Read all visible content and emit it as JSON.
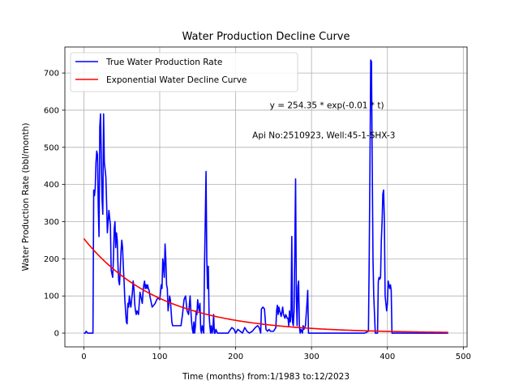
{
  "chart_data": {
    "type": "line",
    "title": "Water Production Decline Curve",
    "xlabel": "Time (months) from:1/1983 to:12/2023",
    "ylabel": "Water Production Rate (bbl/month)",
    "xlim": [
      -25,
      505
    ],
    "ylim": [
      -37,
      770
    ],
    "xticks": [
      0,
      100,
      200,
      300,
      400,
      500
    ],
    "yticks": [
      0,
      100,
      200,
      300,
      400,
      500,
      600,
      700
    ],
    "grid": true,
    "legend_position": "top-left",
    "annotations": [
      {
        "text": "y = 254.35 * exp(-0.01 * t)",
        "x": 245,
        "y": 605
      },
      {
        "text": "Api No:2510923, Well:45-1-SHX-3",
        "x": 222,
        "y": 525
      }
    ],
    "series": [
      {
        "name": "True Water Production Rate",
        "color": "#0000ff",
        "points": [
          [
            0,
            0
          ],
          [
            1,
            0
          ],
          [
            2,
            0
          ],
          [
            3,
            5
          ],
          [
            4,
            3
          ],
          [
            5,
            0
          ],
          [
            6,
            0
          ],
          [
            10,
            0
          ],
          [
            12,
            0
          ],
          [
            13,
            385
          ],
          [
            14,
            370
          ],
          [
            15,
            390
          ],
          [
            16,
            460
          ],
          [
            17,
            490
          ],
          [
            18,
            480
          ],
          [
            19,
            340
          ],
          [
            20,
            260
          ],
          [
            21,
            555
          ],
          [
            22,
            590
          ],
          [
            23,
            470
          ],
          [
            24,
            360
          ],
          [
            25,
            320
          ],
          [
            26,
            590
          ],
          [
            27,
            460
          ],
          [
            28,
            440
          ],
          [
            29,
            420
          ],
          [
            30,
            350
          ],
          [
            31,
            270
          ],
          [
            32,
            300
          ],
          [
            33,
            330
          ],
          [
            34,
            310
          ],
          [
            35,
            290
          ],
          [
            36,
            170
          ],
          [
            37,
            160
          ],
          [
            38,
            150
          ],
          [
            39,
            200
          ],
          [
            40,
            280
          ],
          [
            41,
            300
          ],
          [
            42,
            230
          ],
          [
            43,
            270
          ],
          [
            44,
            250
          ],
          [
            45,
            180
          ],
          [
            46,
            140
          ],
          [
            47,
            130
          ],
          [
            48,
            170
          ],
          [
            49,
            220
          ],
          [
            50,
            250
          ],
          [
            51,
            230
          ],
          [
            52,
            180
          ],
          [
            53,
            140
          ],
          [
            54,
            90
          ],
          [
            55,
            60
          ],
          [
            56,
            30
          ],
          [
            57,
            25
          ],
          [
            58,
            80
          ],
          [
            59,
            70
          ],
          [
            60,
            100
          ],
          [
            61,
            80
          ],
          [
            62,
            70
          ],
          [
            63,
            90
          ],
          [
            64,
            110
          ],
          [
            65,
            140
          ],
          [
            66,
            120
          ],
          [
            67,
            80
          ],
          [
            68,
            60
          ],
          [
            69,
            50
          ],
          [
            70,
            60
          ],
          [
            71,
            55
          ],
          [
            72,
            50
          ],
          [
            73,
            80
          ],
          [
            74,
            110
          ],
          [
            75,
            100
          ],
          [
            76,
            90
          ],
          [
            77,
            80
          ],
          [
            78,
            110
          ],
          [
            79,
            130
          ],
          [
            80,
            140
          ],
          [
            81,
            120
          ],
          [
            82,
            130
          ],
          [
            83,
            120
          ],
          [
            84,
            130
          ],
          [
            85,
            120
          ],
          [
            86,
            115
          ],
          [
            87,
            100
          ],
          [
            88,
            90
          ],
          [
            89,
            80
          ],
          [
            90,
            70
          ],
          [
            92,
            75
          ],
          [
            94,
            80
          ],
          [
            96,
            90
          ],
          [
            98,
            95
          ],
          [
            100,
            90
          ],
          [
            102,
            130
          ],
          [
            103,
            120
          ],
          [
            104,
            200
          ],
          [
            105,
            180
          ],
          [
            106,
            150
          ],
          [
            107,
            240
          ],
          [
            108,
            200
          ],
          [
            109,
            130
          ],
          [
            110,
            120
          ],
          [
            111,
            60
          ],
          [
            112,
            80
          ],
          [
            113,
            100
          ],
          [
            114,
            90
          ],
          [
            115,
            60
          ],
          [
            116,
            30
          ],
          [
            117,
            20
          ],
          [
            118,
            20
          ],
          [
            120,
            20
          ],
          [
            125,
            20
          ],
          [
            128,
            20
          ],
          [
            130,
            50
          ],
          [
            132,
            90
          ],
          [
            134,
            100
          ],
          [
            136,
            60
          ],
          [
            138,
            50
          ],
          [
            140,
            100
          ],
          [
            141,
            60
          ],
          [
            142,
            30
          ],
          [
            143,
            10
          ],
          [
            144,
            0
          ],
          [
            145,
            30
          ],
          [
            146,
            0
          ],
          [
            147,
            20
          ],
          [
            148,
            60
          ],
          [
            149,
            50
          ],
          [
            150,
            90
          ],
          [
            151,
            70
          ],
          [
            152,
            60
          ],
          [
            153,
            80
          ],
          [
            154,
            10
          ],
          [
            155,
            0
          ],
          [
            156,
            20
          ],
          [
            157,
            10
          ],
          [
            158,
            0
          ],
          [
            159,
            180
          ],
          [
            160,
            300
          ],
          [
            161,
            435
          ],
          [
            162,
            200
          ],
          [
            163,
            120
          ],
          [
            164,
            180
          ],
          [
            165,
            50
          ],
          [
            166,
            20
          ],
          [
            167,
            0
          ],
          [
            168,
            20
          ],
          [
            169,
            0
          ],
          [
            170,
            10
          ],
          [
            171,
            50
          ],
          [
            172,
            0
          ],
          [
            173,
            0
          ],
          [
            174,
            10
          ],
          [
            176,
            0
          ],
          [
            180,
            0
          ],
          [
            185,
            0
          ],
          [
            190,
            0
          ],
          [
            195,
            15
          ],
          [
            198,
            10
          ],
          [
            200,
            0
          ],
          [
            203,
            10
          ],
          [
            206,
            5
          ],
          [
            209,
            0
          ],
          [
            212,
            15
          ],
          [
            215,
            5
          ],
          [
            218,
            0
          ],
          [
            222,
            5
          ],
          [
            226,
            15
          ],
          [
            229,
            20
          ],
          [
            231,
            15
          ],
          [
            233,
            0
          ],
          [
            234,
            65
          ],
          [
            236,
            70
          ],
          [
            238,
            65
          ],
          [
            240,
            10
          ],
          [
            242,
            5
          ],
          [
            244,
            10
          ],
          [
            246,
            5
          ],
          [
            250,
            5
          ],
          [
            253,
            15
          ],
          [
            254,
            60
          ],
          [
            255,
            75
          ],
          [
            256,
            50
          ],
          [
            257,
            70
          ],
          [
            258,
            60
          ],
          [
            260,
            45
          ],
          [
            262,
            70
          ],
          [
            263,
            50
          ],
          [
            265,
            40
          ],
          [
            266,
            50
          ],
          [
            268,
            40
          ],
          [
            269,
            40
          ],
          [
            270,
            20
          ],
          [
            271,
            60
          ],
          [
            272,
            30
          ],
          [
            273,
            45
          ],
          [
            274,
            260
          ],
          [
            275,
            30
          ],
          [
            276,
            20
          ],
          [
            277,
            60
          ],
          [
            278,
            230
          ],
          [
            279,
            415
          ],
          [
            280,
            100
          ],
          [
            281,
            20
          ],
          [
            282,
            125
          ],
          [
            283,
            140
          ],
          [
            284,
            20
          ],
          [
            285,
            0
          ],
          [
            286,
            10
          ],
          [
            288,
            0
          ],
          [
            289,
            20
          ],
          [
            290,
            10
          ],
          [
            292,
            20
          ],
          [
            294,
            80
          ],
          [
            295,
            115
          ],
          [
            296,
            0
          ],
          [
            300,
            0
          ],
          [
            310,
            0
          ],
          [
            320,
            0
          ],
          [
            330,
            0
          ],
          [
            340,
            0
          ],
          [
            350,
            0
          ],
          [
            360,
            0
          ],
          [
            370,
            0
          ],
          [
            375,
            5
          ],
          [
            376,
            200
          ],
          [
            377,
            450
          ],
          [
            378,
            735
          ],
          [
            379,
            730
          ],
          [
            380,
            450
          ],
          [
            381,
            200
          ],
          [
            382,
            100
          ],
          [
            383,
            50
          ],
          [
            384,
            0
          ],
          [
            385,
            0
          ],
          [
            387,
            0
          ],
          [
            388,
            140
          ],
          [
            389,
            150
          ],
          [
            390,
            145
          ],
          [
            391,
            150
          ],
          [
            392,
            250
          ],
          [
            393,
            300
          ],
          [
            394,
            375
          ],
          [
            395,
            385
          ],
          [
            396,
            300
          ],
          [
            397,
            100
          ],
          [
            398,
            80
          ],
          [
            399,
            60
          ],
          [
            400,
            80
          ],
          [
            401,
            140
          ],
          [
            402,
            130
          ],
          [
            403,
            120
          ],
          [
            404,
            130
          ],
          [
            405,
            115
          ],
          [
            406,
            0
          ],
          [
            410,
            0
          ],
          [
            420,
            0
          ],
          [
            430,
            0
          ],
          [
            440,
            0
          ],
          [
            450,
            0
          ],
          [
            460,
            0
          ],
          [
            470,
            0
          ],
          [
            480,
            0
          ]
        ]
      },
      {
        "name": "Exponential Water Decline Curve",
        "color": "#ff0000",
        "function": {
          "a": 254.35,
          "b": -0.01,
          "x_start": 0,
          "x_end": 480
        }
      }
    ]
  }
}
